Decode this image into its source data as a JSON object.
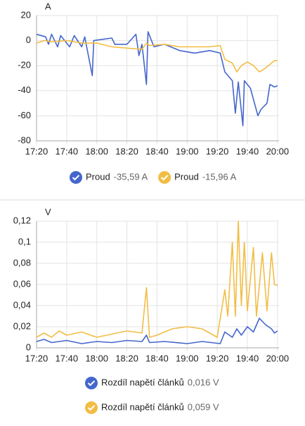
{
  "chart_data": [
    {
      "type": "line",
      "y_label": "A",
      "xlim": [
        "17:20",
        "20:01"
      ],
      "xticks": [
        "17:20",
        "17:40",
        "18:00",
        "18:20",
        "18:40",
        "19:00",
        "19:20",
        "19:40",
        "20:00"
      ],
      "ylim": [
        -80,
        20
      ],
      "yticks": [
        20,
        0,
        -20,
        -40,
        -60,
        -80
      ],
      "grid": true,
      "series": [
        {
          "name": "Proud",
          "state": "-35,59 A",
          "color": "#4466cc",
          "x": [
            "17:20",
            "17:26",
            "17:28",
            "17:30",
            "17:34",
            "17:36",
            "17:42",
            "17:45",
            "17:50",
            "17:52",
            "17:57",
            "17:58",
            "18:04",
            "18:10",
            "18:12",
            "18:20",
            "18:26",
            "18:28",
            "18:30",
            "18:33",
            "18:34",
            "18:38",
            "18:45",
            "18:55",
            "19:05",
            "19:15",
            "19:22",
            "19:25",
            "19:30",
            "19:32",
            "19:34",
            "19:37",
            "19:38",
            "19:42",
            "19:47",
            "19:49",
            "19:53",
            "19:55",
            "19:58",
            "20:00"
          ],
          "values": [
            5,
            3,
            -3,
            5,
            -5,
            4,
            -5,
            4,
            -5,
            3,
            -28,
            0,
            1,
            2,
            -3,
            -3,
            5,
            -12,
            -3,
            -35,
            7,
            -5,
            -3,
            -8,
            -10,
            -8,
            -10,
            -25,
            -32,
            -58,
            -33,
            -68,
            -32,
            -38,
            -60,
            -55,
            -50,
            -35,
            -37,
            -36
          ]
        },
        {
          "name": "Proud",
          "state": "-15,96 A",
          "color": "#f2bd45",
          "x": [
            "17:20",
            "17:25",
            "17:30",
            "17:40",
            "17:50",
            "18:00",
            "18:10",
            "18:20",
            "18:30",
            "18:33",
            "18:35",
            "18:45",
            "18:55",
            "19:05",
            "19:15",
            "19:22",
            "19:25",
            "19:30",
            "19:33",
            "19:36",
            "19:40",
            "19:44",
            "19:48",
            "19:52",
            "19:56",
            "19:58",
            "20:00"
          ],
          "values": [
            -2,
            0,
            -1,
            0,
            -2,
            -2,
            -5,
            -6,
            -7,
            -2,
            -4,
            -3,
            -5,
            -5,
            -5,
            -4,
            -15,
            -18,
            -25,
            -20,
            -17,
            -20,
            -25,
            -22,
            -18,
            -16,
            -16
          ]
        }
      ]
    },
    {
      "type": "line",
      "y_label": "V",
      "xlim": [
        "17:20",
        "20:01"
      ],
      "xticks": [
        "17:20",
        "17:40",
        "18:00",
        "18:20",
        "18:40",
        "19:00",
        "19:20",
        "19:40",
        "20:00"
      ],
      "ylim": [
        0,
        0.12
      ],
      "yticks": [
        0,
        {
          "value": 0.02,
          "label": "0,02"
        },
        {
          "value": 0.04,
          "label": "0,04"
        },
        {
          "value": 0.06,
          "label": "0,06"
        },
        {
          "value": 0.08,
          "label": "0,08"
        },
        {
          "value": 0.1,
          "label": "0,1"
        },
        {
          "value": 0.12,
          "label": "0,12"
        }
      ],
      "grid": true,
      "series": [
        {
          "name": "Rozdíl napětí článků",
          "state": "0,016 V",
          "color": "#4466cc",
          "x": [
            "17:20",
            "17:25",
            "17:30",
            "17:40",
            "17:50",
            "18:00",
            "18:10",
            "18:20",
            "18:30",
            "18:33",
            "18:35",
            "18:45",
            "19:00",
            "19:10",
            "19:22",
            "19:25",
            "19:30",
            "19:33",
            "19:36",
            "19:40",
            "19:44",
            "19:48",
            "19:52",
            "19:56",
            "19:58",
            "20:00"
          ],
          "values": [
            0.006,
            0.008,
            0.005,
            0.007,
            0.004,
            0.006,
            0.005,
            0.007,
            0.006,
            0.012,
            0.005,
            0.006,
            0.004,
            0.006,
            0.004,
            0.015,
            0.01,
            0.018,
            0.012,
            0.02,
            0.015,
            0.028,
            0.022,
            0.018,
            0.014,
            0.016
          ]
        },
        {
          "name": "Rozdíl napětí článků",
          "state": "0,059 V",
          "color": "#f2bd45",
          "x": [
            "17:20",
            "17:25",
            "17:30",
            "17:35",
            "17:40",
            "17:50",
            "18:00",
            "18:10",
            "18:20",
            "18:30",
            "18:33",
            "18:35",
            "18:40",
            "18:50",
            "19:00",
            "19:10",
            "19:20",
            "19:25",
            "19:27",
            "19:30",
            "19:32",
            "19:34",
            "19:36",
            "19:38",
            "19:40",
            "19:44",
            "19:46",
            "19:50",
            "19:53",
            "19:56",
            "19:58",
            "20:00"
          ],
          "values": [
            0.01,
            0.014,
            0.01,
            0.016,
            0.012,
            0.015,
            0.01,
            0.013,
            0.016,
            0.014,
            0.057,
            0.01,
            0.012,
            0.018,
            0.02,
            0.018,
            0.01,
            0.055,
            0.03,
            0.1,
            0.03,
            0.12,
            0.04,
            0.1,
            0.035,
            0.095,
            0.03,
            0.09,
            0.035,
            0.09,
            0.06,
            0.059
          ]
        }
      ]
    }
  ]
}
